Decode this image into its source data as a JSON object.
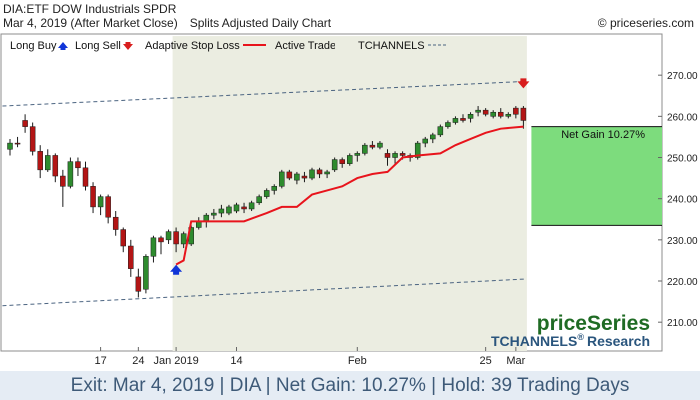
{
  "header": {
    "symbol": "DIA:ETF DOW Industrials SPDR",
    "date": "Mar 4, 2019 (After Market Close)",
    "chart_kind": "Splits Adjusted Daily Chart",
    "copyright": "© priceseries.com"
  },
  "legend": {
    "long_buy": "Long Buy",
    "long_sell": "Long Sell",
    "adaptive_stop": "Adaptive Stop Loss",
    "active_trade": "Active Trade",
    "tchannels": "TCHANNELS"
  },
  "annotation": {
    "net_gain": "Net Gain 10.27%"
  },
  "branding": {
    "name": "priceSeries",
    "research_prefix": "TCHANNELS",
    "research_mark": "®",
    "research_suffix": "Research"
  },
  "footer": {
    "text": "Exit: Mar 4, 2019 | DIA | Net Gain: 10.27% | Hold: 39 Trading Days"
  },
  "colors": {
    "up": "#2e8b2e",
    "down": "#b31515",
    "stop": "#e8141c",
    "trade_shade": "#ebede1",
    "gain_box": "#7ddc7d",
    "buy": "#1035d8",
    "sell": "#d81d1d",
    "channel": "#4a6380"
  },
  "chart_data": {
    "type": "candlestick",
    "y_ticks": [
      "210.00",
      "220.00",
      "230.00",
      "240.00",
      "250.00",
      "260.00",
      "270.00"
    ],
    "x_ticks": [
      {
        "label": "17",
        "index": 12
      },
      {
        "label": "24",
        "index": 17
      },
      {
        "label": "Jan 2019",
        "index": 22
      },
      {
        "label": "14",
        "index": 30
      },
      {
        "label": "Feb",
        "index": 46
      },
      {
        "label": "25",
        "index": 63
      },
      {
        "label": "Mar",
        "index": 67
      }
    ],
    "ylim": [
      203,
      280
    ],
    "bars": [
      {
        "o": 252,
        "h": 254.5,
        "l": 250.5,
        "c": 253.5
      },
      {
        "o": 253.5,
        "h": 255,
        "l": 252.5,
        "c": 253.3
      },
      {
        "o": 259,
        "h": 260.5,
        "l": 256,
        "c": 257.5
      },
      {
        "o": 257.5,
        "h": 258.5,
        "l": 250.5,
        "c": 251.5
      },
      {
        "o": 251.5,
        "h": 253,
        "l": 245,
        "c": 247
      },
      {
        "o": 247,
        "h": 252,
        "l": 246.5,
        "c": 250.5
      },
      {
        "o": 250.5,
        "h": 251,
        "l": 244,
        "c": 245.5
      },
      {
        "o": 245.5,
        "h": 247,
        "l": 238,
        "c": 243
      },
      {
        "o": 243,
        "h": 250,
        "l": 242.5,
        "c": 249
      },
      {
        "o": 249,
        "h": 250,
        "l": 245.5,
        "c": 247.5
      },
      {
        "o": 247.5,
        "h": 249,
        "l": 242,
        "c": 243
      },
      {
        "o": 243,
        "h": 244,
        "l": 236.5,
        "c": 238
      },
      {
        "o": 238,
        "h": 241,
        "l": 236,
        "c": 240.5
      },
      {
        "o": 240.5,
        "h": 241,
        "l": 234,
        "c": 235.5
      },
      {
        "o": 235.5,
        "h": 237,
        "l": 231,
        "c": 232.5
      },
      {
        "o": 232.5,
        "h": 233,
        "l": 227,
        "c": 228.5
      },
      {
        "o": 228.5,
        "h": 230,
        "l": 221,
        "c": 223
      },
      {
        "o": 221,
        "h": 223,
        "l": 216,
        "c": 217.5
      },
      {
        "o": 218,
        "h": 226.5,
        "l": 217,
        "c": 226
      },
      {
        "o": 226,
        "h": 231,
        "l": 224.5,
        "c": 230.5
      },
      {
        "o": 230.5,
        "h": 231,
        "l": 226.5,
        "c": 229.5
      },
      {
        "o": 230,
        "h": 232.5,
        "l": 229,
        "c": 232
      },
      {
        "o": 232,
        "h": 233,
        "l": 227,
        "c": 229
      },
      {
        "o": 229,
        "h": 232,
        "l": 228,
        "c": 231.5
      },
      {
        "o": 229,
        "h": 233.5,
        "l": 228.5,
        "c": 233
      },
      {
        "o": 233,
        "h": 235.5,
        "l": 232.5,
        "c": 234.5
      },
      {
        "o": 234.5,
        "h": 236.5,
        "l": 233,
        "c": 236
      },
      {
        "o": 236,
        "h": 237.5,
        "l": 235,
        "c": 236.5
      },
      {
        "o": 236.5,
        "h": 238.5,
        "l": 235.5,
        "c": 237.5
      },
      {
        "o": 236.5,
        "h": 238.5,
        "l": 236,
        "c": 238
      },
      {
        "o": 237,
        "h": 239,
        "l": 236.5,
        "c": 238.5
      },
      {
        "o": 238,
        "h": 239,
        "l": 236.5,
        "c": 237.5
      },
      {
        "o": 237.5,
        "h": 239.5,
        "l": 237,
        "c": 239
      },
      {
        "o": 239,
        "h": 241,
        "l": 238.5,
        "c": 240.5
      },
      {
        "o": 240.5,
        "h": 242.5,
        "l": 240,
        "c": 242
      },
      {
        "o": 242,
        "h": 243.5,
        "l": 241,
        "c": 243
      },
      {
        "o": 243,
        "h": 247,
        "l": 242.5,
        "c": 246.5
      },
      {
        "o": 246.5,
        "h": 247,
        "l": 244.5,
        "c": 245
      },
      {
        "o": 244.5,
        "h": 246.5,
        "l": 243.5,
        "c": 246
      },
      {
        "o": 245.5,
        "h": 246.5,
        "l": 244,
        "c": 245
      },
      {
        "o": 245,
        "h": 247.5,
        "l": 244.5,
        "c": 247
      },
      {
        "o": 247,
        "h": 247.5,
        "l": 245,
        "c": 246
      },
      {
        "o": 246,
        "h": 247,
        "l": 245,
        "c": 246.5
      },
      {
        "o": 247,
        "h": 250,
        "l": 246.5,
        "c": 249.5
      },
      {
        "o": 249.5,
        "h": 250,
        "l": 247.5,
        "c": 248.5
      },
      {
        "o": 248.5,
        "h": 251,
        "l": 248,
        "c": 250.5
      },
      {
        "o": 250.5,
        "h": 251.5,
        "l": 249,
        "c": 251
      },
      {
        "o": 251,
        "h": 253.5,
        "l": 250.5,
        "c": 253
      },
      {
        "o": 253,
        "h": 254,
        "l": 252,
        "c": 252.5
      },
      {
        "o": 252.5,
        "h": 254,
        "l": 252,
        "c": 253.5
      },
      {
        "o": 251,
        "h": 252,
        "l": 248,
        "c": 250
      },
      {
        "o": 250,
        "h": 251.5,
        "l": 248.5,
        "c": 251
      },
      {
        "o": 251,
        "h": 251.5,
        "l": 249.5,
        "c": 250.5
      },
      {
        "o": 250.5,
        "h": 251,
        "l": 249,
        "c": 250
      },
      {
        "o": 250,
        "h": 254,
        "l": 249.5,
        "c": 253.5
      },
      {
        "o": 253.5,
        "h": 255,
        "l": 252.5,
        "c": 254.5
      },
      {
        "o": 254.5,
        "h": 256,
        "l": 253.5,
        "c": 255.5
      },
      {
        "o": 255.5,
        "h": 258,
        "l": 255,
        "c": 257.5
      },
      {
        "o": 257.5,
        "h": 259,
        "l": 257,
        "c": 258.5
      },
      {
        "o": 258.5,
        "h": 260,
        "l": 258,
        "c": 259.5
      },
      {
        "o": 259.5,
        "h": 260.5,
        "l": 258.5,
        "c": 259
      },
      {
        "o": 259.5,
        "h": 261,
        "l": 258.5,
        "c": 260.5
      },
      {
        "o": 261,
        "h": 262.5,
        "l": 260,
        "c": 261.5
      },
      {
        "o": 261.5,
        "h": 262,
        "l": 260,
        "c": 260.5
      },
      {
        "o": 260,
        "h": 261.5,
        "l": 259.5,
        "c": 261
      },
      {
        "o": 261,
        "h": 262,
        "l": 259.5,
        "c": 260
      },
      {
        "o": 260,
        "h": 261,
        "l": 259.5,
        "c": 260.5
      },
      {
        "o": 262,
        "h": 262.5,
        "l": 259.5,
        "c": 260.5
      },
      {
        "o": 262,
        "h": 262.5,
        "l": 257,
        "c": 259
      }
    ],
    "trade_window": {
      "entry_index": 22,
      "exit_index": 68
    },
    "stop_loss": [
      {
        "i": 22,
        "v": 224
      },
      {
        "i": 23,
        "v": 225
      },
      {
        "i": 24,
        "v": 234.5
      },
      {
        "i": 31,
        "v": 234.5
      },
      {
        "i": 34,
        "v": 236.5
      },
      {
        "i": 36,
        "v": 238
      },
      {
        "i": 38,
        "v": 238
      },
      {
        "i": 40,
        "v": 241
      },
      {
        "i": 42,
        "v": 242
      },
      {
        "i": 44,
        "v": 243
      },
      {
        "i": 46,
        "v": 245
      },
      {
        "i": 48,
        "v": 246
      },
      {
        "i": 50,
        "v": 246.5
      },
      {
        "i": 52,
        "v": 250
      },
      {
        "i": 54,
        "v": 250.5
      },
      {
        "i": 57,
        "v": 251
      },
      {
        "i": 59,
        "v": 253
      },
      {
        "i": 61,
        "v": 254.5
      },
      {
        "i": 63,
        "v": 256
      },
      {
        "i": 65,
        "v": 257
      },
      {
        "i": 68,
        "v": 257.5
      }
    ],
    "channel_upper": [
      {
        "i": -1,
        "v": 262.5
      },
      {
        "i": 68,
        "v": 268.5
      }
    ],
    "channel_lower": [
      {
        "i": -1,
        "v": 214
      },
      {
        "i": 68,
        "v": 220.5
      }
    ],
    "buy_signal": {
      "index": 22,
      "value": 222.5
    },
    "sell_signal": {
      "index": 68,
      "value": 268
    },
    "gain_box": {
      "from": 233.5,
      "to": 257.5
    }
  }
}
